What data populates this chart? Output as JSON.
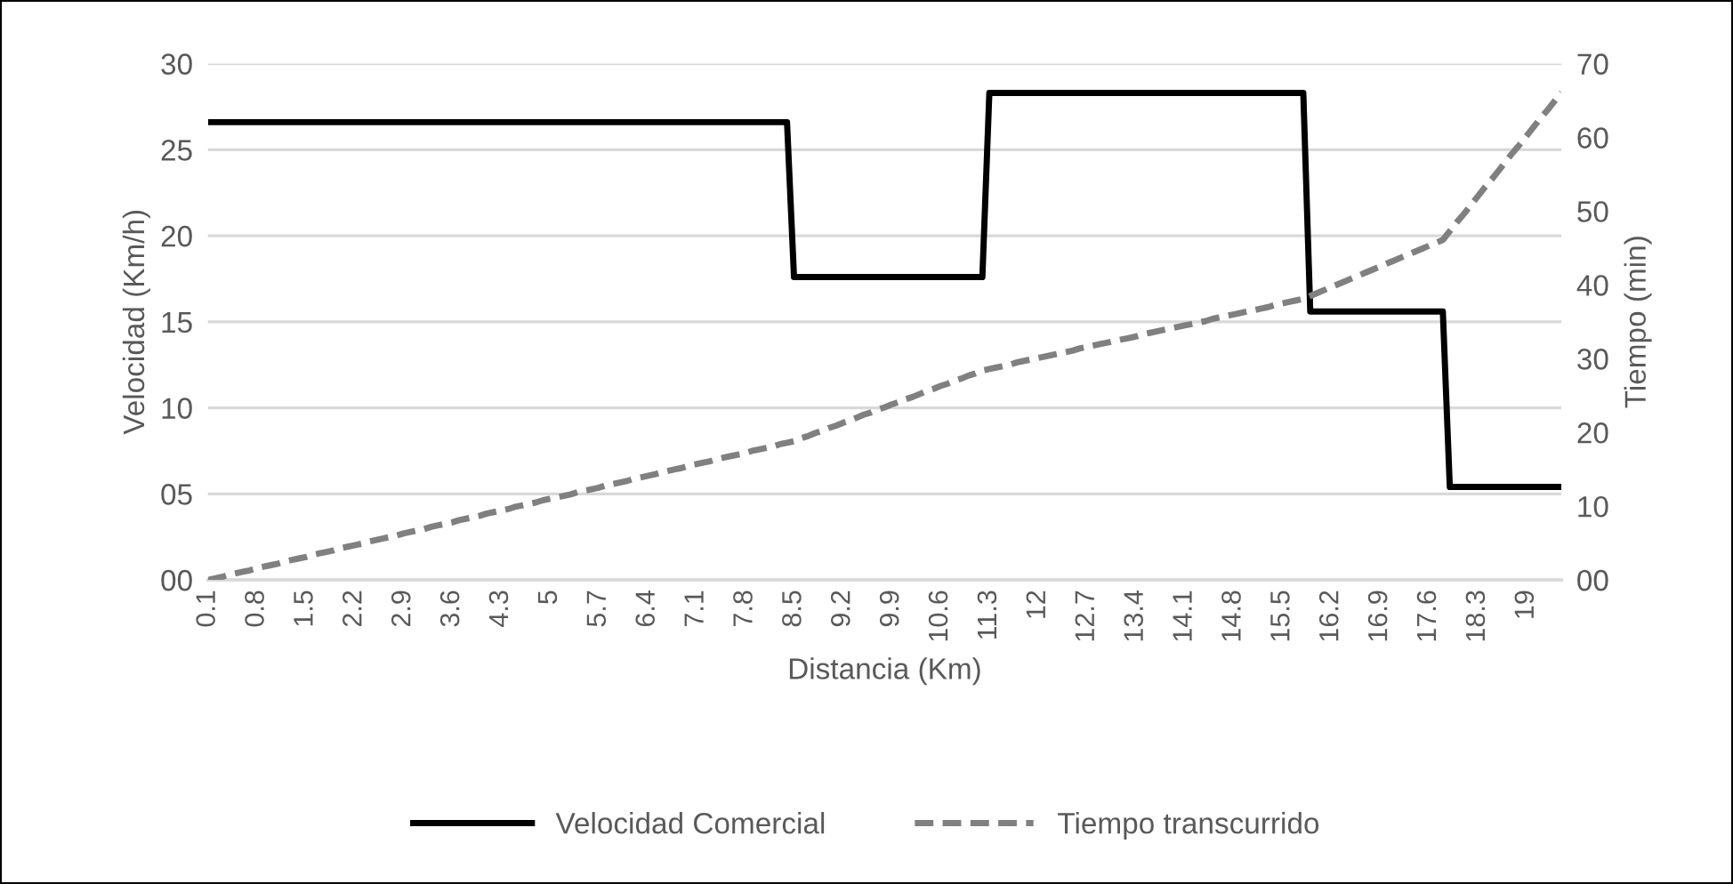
{
  "chart_data": {
    "type": "line",
    "xlabel": "Distancia (Km)",
    "ylabel": "Velocidad (Km/h)",
    "y2label": "Tiempo (min)",
    "categories": [
      "0.1",
      null,
      null,
      null,
      null,
      null,
      null,
      "0.8",
      null,
      null,
      null,
      null,
      null,
      null,
      "1.5",
      null,
      null,
      null,
      null,
      null,
      null,
      "2.2",
      null,
      null,
      null,
      null,
      null,
      null,
      "2.9",
      null,
      null,
      null,
      null,
      null,
      null,
      "3.6",
      null,
      null,
      null,
      null,
      null,
      null,
      "4.3",
      null,
      null,
      null,
      null,
      null,
      null,
      "5",
      null,
      null,
      null,
      null,
      null,
      null,
      "5.7",
      null,
      null,
      null,
      null,
      null,
      null,
      "6.4",
      null,
      null,
      null,
      null,
      null,
      null,
      "7.1",
      null,
      null,
      null,
      null,
      null,
      null,
      "7.8",
      null,
      null,
      null,
      null,
      null,
      null,
      "8.5",
      null,
      null,
      null,
      null,
      null,
      null,
      "9.2",
      null,
      null,
      null,
      null,
      null,
      null,
      "9.9",
      null,
      null,
      null,
      null,
      null,
      null,
      "10.6",
      null,
      null,
      null,
      null,
      null,
      null,
      "11.3",
      null,
      null,
      null,
      null,
      null,
      null,
      "12",
      null,
      null,
      null,
      null,
      null,
      null,
      "12.7",
      null,
      null,
      null,
      null,
      null,
      null,
      "13.4",
      null,
      null,
      null,
      null,
      null,
      null,
      "14.1",
      null,
      null,
      null,
      null,
      null,
      null,
      "14.8",
      null,
      null,
      null,
      null,
      null,
      null,
      "15.5",
      null,
      null,
      null,
      null,
      null,
      null,
      "16.2",
      null,
      null,
      null,
      null,
      null,
      null,
      "16.9",
      null,
      null,
      null,
      null,
      null,
      null,
      "17.6",
      null,
      null,
      null,
      null,
      null,
      null,
      "18.3",
      null,
      null,
      null,
      null,
      null,
      null,
      "19",
      null,
      null,
      null,
      null,
      null
    ],
    "series": [
      {
        "name": "Velocidad Comercial",
        "color": "#000000",
        "line_style": "solid",
        "values": [
          26.6,
          26.6,
          26.6,
          26.6,
          26.6,
          26.6,
          26.6,
          26.6,
          26.6,
          26.6,
          26.6,
          26.6,
          26.6,
          26.6,
          26.6,
          26.6,
          26.6,
          26.6,
          26.6,
          26.6,
          26.6,
          26.6,
          26.6,
          26.6,
          26.6,
          26.6,
          26.6,
          26.6,
          26.6,
          26.6,
          26.6,
          26.6,
          26.6,
          26.6,
          26.6,
          26.6,
          26.6,
          26.6,
          26.6,
          26.6,
          26.6,
          26.6,
          26.6,
          26.6,
          26.6,
          26.6,
          26.6,
          26.6,
          26.6,
          26.6,
          26.6,
          26.6,
          26.6,
          26.6,
          26.6,
          26.6,
          26.6,
          26.6,
          26.6,
          26.6,
          26.6,
          26.6,
          26.6,
          26.6,
          26.6,
          26.6,
          26.6,
          26.6,
          26.6,
          26.6,
          26.6,
          26.6,
          26.6,
          26.6,
          26.6,
          26.6,
          26.6,
          26.6,
          26.6,
          26.6,
          26.6,
          26.6,
          26.6,
          26.6,
          17.6,
          17.6,
          17.6,
          17.6,
          17.6,
          17.6,
          17.6,
          17.6,
          17.6,
          17.6,
          17.6,
          17.6,
          17.6,
          17.6,
          17.6,
          17.6,
          17.6,
          17.6,
          17.6,
          17.6,
          17.6,
          17.6,
          17.6,
          17.6,
          17.6,
          17.6,
          17.6,
          17.6,
          28.3,
          28.3,
          28.3,
          28.3,
          28.3,
          28.3,
          28.3,
          28.3,
          28.3,
          28.3,
          28.3,
          28.3,
          28.3,
          28.3,
          28.3,
          28.3,
          28.3,
          28.3,
          28.3,
          28.3,
          28.3,
          28.3,
          28.3,
          28.3,
          28.3,
          28.3,
          28.3,
          28.3,
          28.3,
          28.3,
          28.3,
          28.3,
          28.3,
          28.3,
          28.3,
          28.3,
          28.3,
          28.3,
          28.3,
          28.3,
          28.3,
          28.3,
          28.3,
          28.3,
          28.3,
          28.3,
          15.6,
          15.6,
          15.6,
          15.6,
          15.6,
          15.6,
          15.6,
          15.6,
          15.6,
          15.6,
          15.6,
          15.6,
          15.6,
          15.6,
          15.6,
          15.6,
          15.6,
          15.6,
          15.6,
          15.6,
          5.4,
          5.4,
          5.4,
          5.4,
          5.4,
          5.4,
          5.4,
          5.4,
          5.4,
          5.4,
          5.4,
          5.4,
          5.4,
          5.4,
          5.4,
          5.4,
          5.4
        ]
      },
      {
        "name": "Tiempo transcurrido",
        "color": "#808080",
        "line_style": "dashed",
        "axis": "y2",
        "values": [
          0.0,
          0.2,
          0.4,
          0.7,
          0.9,
          1.1,
          1.3,
          1.6,
          1.8,
          2.0,
          2.2,
          2.5,
          2.7,
          2.9,
          3.1,
          3.4,
          3.6,
          3.8,
          4.0,
          4.3,
          4.5,
          4.7,
          4.9,
          5.2,
          5.4,
          5.6,
          5.8,
          6.0,
          6.3,
          6.5,
          6.7,
          6.9,
          7.2,
          7.4,
          7.6,
          7.8,
          8.1,
          8.3,
          8.5,
          8.7,
          9.0,
          9.2,
          9.4,
          9.6,
          9.9,
          10.1,
          10.3,
          10.5,
          10.8,
          11.0,
          11.2,
          11.4,
          11.6,
          11.9,
          12.1,
          12.3,
          12.5,
          12.8,
          13.0,
          13.2,
          13.4,
          13.7,
          13.9,
          14.1,
          14.3,
          14.6,
          14.8,
          15.0,
          15.2,
          15.5,
          15.7,
          15.9,
          16.1,
          16.4,
          16.6,
          16.8,
          17.0,
          17.2,
          17.5,
          17.7,
          17.9,
          18.1,
          18.4,
          18.6,
          18.8,
          19.2,
          19.5,
          19.9,
          20.2,
          20.6,
          20.9,
          21.3,
          21.6,
          22.0,
          22.4,
          22.7,
          23.1,
          23.4,
          23.8,
          24.1,
          24.5,
          24.8,
          25.2,
          25.6,
          25.9,
          26.3,
          26.6,
          27.0,
          27.3,
          27.7,
          28.0,
          28.4,
          28.6,
          28.8,
          29.0,
          29.2,
          29.5,
          29.7,
          29.9,
          30.1,
          30.3,
          30.5,
          30.7,
          30.9,
          31.1,
          31.4,
          31.6,
          31.8,
          32.0,
          32.2,
          32.4,
          32.6,
          32.8,
          33.0,
          33.3,
          33.5,
          33.7,
          33.9,
          34.1,
          34.3,
          34.5,
          34.7,
          34.9,
          35.1,
          35.4,
          35.6,
          35.8,
          36.0,
          36.2,
          36.4,
          36.6,
          36.8,
          37.0,
          37.3,
          37.5,
          37.7,
          37.9,
          38.1,
          38.5,
          38.9,
          39.3,
          39.7,
          40.1,
          40.5,
          40.9,
          41.3,
          41.7,
          42.1,
          42.5,
          42.9,
          43.3,
          43.7,
          44.1,
          44.5,
          44.9,
          45.3,
          45.7,
          46.1,
          47.3,
          48.5,
          49.6,
          50.8,
          52.0,
          53.2,
          54.3,
          55.5,
          56.7,
          57.9,
          59.0,
          60.2,
          61.4,
          62.6,
          63.7,
          64.9,
          66.1
        ]
      }
    ],
    "ylim": [
      0,
      30
    ],
    "yticks": [
      {
        "value": 0,
        "label": "00"
      },
      {
        "value": 5,
        "label": "05"
      },
      10,
      15,
      20,
      25,
      30
    ],
    "y2lim": [
      0,
      70
    ],
    "y2ticks": [
      {
        "value": 0,
        "label": "00"
      },
      10,
      20,
      30,
      40,
      50,
      60,
      70
    ],
    "grid": "y",
    "legend": "bottom"
  }
}
